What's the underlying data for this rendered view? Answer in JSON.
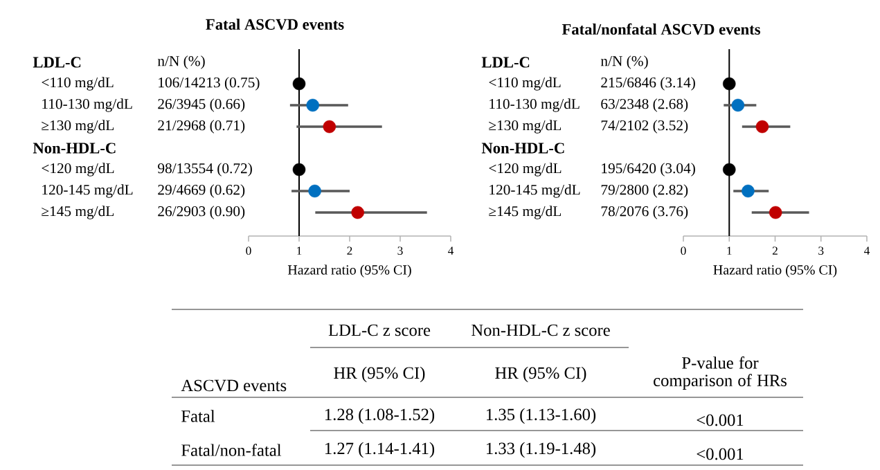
{
  "chart_data": [
    {
      "type": "scatter",
      "orientation": "horizontal",
      "title": "Fatal ASCVD events",
      "xlabel": "Hazard ratio (95% CI)",
      "categories": [
        "LDL-C",
        "<110 mg/dL",
        "110-130 mg/dL",
        "≥130 mg/dL",
        "Non-HDL-C",
        "<120 mg/dL",
        "120-145 mg/dL",
        "≥145 mg/dL"
      ],
      "values": [
        null,
        1.0,
        1.27,
        1.6,
        null,
        1.0,
        1.31,
        2.16
      ],
      "colors": [
        null,
        "#000000",
        "#0070c0",
        "#c00000",
        null,
        "#000000",
        "#0070c0",
        "#c00000"
      ],
      "errors": [
        null,
        null,
        [
          0.82,
          1.97
        ],
        [
          0.95,
          2.64
        ],
        null,
        null,
        [
          0.85,
          2.0
        ],
        [
          1.32,
          3.53
        ]
      ],
      "annotations": [
        "n/N (%)",
        "106/14213 (0.75)",
        "26/3945 (0.66)",
        "21/2968 (0.71)",
        "98/13554 (0.72)",
        "29/4669 (0.62)",
        "26/2903 (0.90)"
      ],
      "ref_lines": [
        {
          "axis": "x",
          "value": 1,
          "color": "#000000"
        }
      ],
      "xlim": [
        0,
        4
      ],
      "xticks": [
        0,
        1,
        2,
        3,
        4
      ],
      "tick_labels": "x",
      "marker": "circle"
    },
    {
      "type": "scatter",
      "orientation": "horizontal",
      "title": "Fatal/nonfatal ASCVD events",
      "xlabel": "Hazard ratio (95% CI)",
      "categories": [
        "LDL-C",
        "<110 mg/dL",
        "110-130 mg/dL",
        "≥130 mg/dL",
        "Non-HDL-C",
        "<120 mg/dL",
        "120-145 mg/dL",
        "≥145 mg/dL"
      ],
      "values": [
        null,
        1.0,
        1.19,
        1.72,
        null,
        1.0,
        1.41,
        2.01
      ],
      "colors": [
        null,
        "#000000",
        "#0070c0",
        "#c00000",
        null,
        "#000000",
        "#0070c0",
        "#c00000"
      ],
      "errors": [
        null,
        null,
        [
          0.88,
          1.59
        ],
        [
          1.28,
          2.33
        ],
        null,
        null,
        [
          1.09,
          1.86
        ],
        [
          1.49,
          2.74
        ]
      ],
      "annotations": [
        "n/N (%)",
        "215/6846 (3.14)",
        "63/2348 (2.68)",
        "74/2102 (3.52)",
        "195/6420 (3.04)",
        "79/2800 (2.82)",
        "78/2076 (3.76)"
      ],
      "ref_lines": [
        {
          "axis": "x",
          "value": 1,
          "color": "#000000"
        }
      ],
      "xlim": [
        0,
        4
      ],
      "xticks": [
        0,
        1,
        2,
        3,
        4
      ],
      "tick_labels": "x",
      "marker": "circle"
    },
    {
      "type": "other",
      "annotations": [
        "LDL-C z score",
        "Non-HDL-C z score"
      ],
      "categories": [
        "ASCVD events",
        "HR (95% CI)",
        "HR (95% CI)",
        "P-value for comparison of HRs"
      ],
      "y_categories": [
        "Fatal",
        "Fatal/non-fatal"
      ],
      "cell_labels": [
        [
          "1.28 (1.08-1.52)",
          "1.35 (1.13-1.60)",
          "<0.001"
        ],
        [
          "1.27 (1.14-1.41)",
          "1.33 (1.19-1.48)",
          "<0.001"
        ]
      ]
    }
  ]
}
